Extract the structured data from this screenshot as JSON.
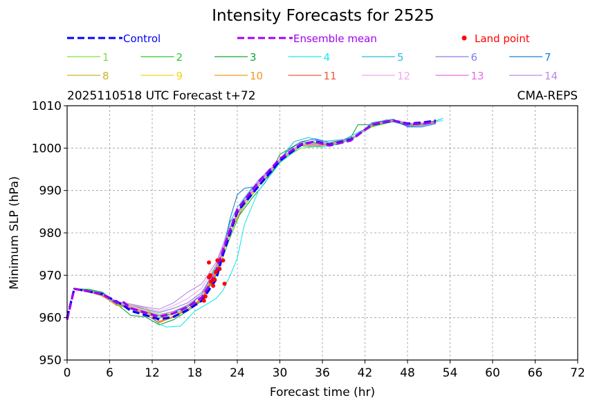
{
  "chart_data": {
    "type": "line",
    "title": "Intensity Forecasts for 2525",
    "subtitle_left": "2025110518 UTC Forecast t+72",
    "subtitle_right": "CMA-REPS",
    "xlabel": "Forecast time (hr)",
    "ylabel": "Minimum SLP (hPa)",
    "xlim": [
      0,
      72
    ],
    "ylim": [
      950,
      1010
    ],
    "xticks": [
      0,
      6,
      12,
      18,
      24,
      30,
      36,
      42,
      48,
      54,
      60,
      66,
      72
    ],
    "yticks": [
      950,
      960,
      970,
      980,
      990,
      1000,
      1010
    ],
    "grid": true,
    "legend": {
      "control": {
        "label": "Control",
        "color": "#0000ff"
      },
      "ensemble_mean": {
        "label": "Ensemble mean",
        "color": "#a000f0"
      },
      "land_point": {
        "label": "Land point",
        "color": "#ff0000"
      },
      "members": [
        {
          "label": "1",
          "color": "#7fe03a"
        },
        {
          "label": "2",
          "color": "#2ec42e"
        },
        {
          "label": "3",
          "color": "#12a63b"
        },
        {
          "label": "4",
          "color": "#19e8e8"
        },
        {
          "label": "5",
          "color": "#22bfe0"
        },
        {
          "label": "6",
          "color": "#7f7fe8"
        },
        {
          "label": "7",
          "color": "#1c7fd0"
        },
        {
          "label": "8",
          "color": "#c9b32a"
        },
        {
          "label": "9",
          "color": "#f2d21a"
        },
        {
          "label": "10",
          "color": "#f5961e"
        },
        {
          "label": "11",
          "color": "#f05a3c"
        },
        {
          "label": "12",
          "color": "#f0a8f0"
        },
        {
          "label": "13",
          "color": "#e86ae8"
        },
        {
          "label": "14",
          "color": "#b98ae8"
        }
      ]
    },
    "series": [
      {
        "name": "Control",
        "x": [
          0,
          1,
          3,
          5,
          7,
          8,
          9,
          11,
          13,
          15,
          17,
          19,
          21,
          22,
          24,
          27,
          30,
          33,
          35,
          37,
          40,
          43,
          46,
          48,
          50,
          52
        ],
        "y": [
          960,
          966.8,
          966.2,
          965.5,
          963.8,
          962.8,
          961.6,
          960.6,
          959.6,
          960.2,
          961.8,
          964,
          969,
          975,
          985,
          991,
          997,
          1000.8,
          1001.6,
          1000.8,
          1002,
          1005.5,
          1006.5,
          1005.8,
          1006,
          1006.5
        ]
      },
      {
        "name": "Ensemble mean",
        "x": [
          0,
          1,
          3,
          5,
          7,
          8,
          9,
          11,
          13,
          15,
          17,
          19,
          20,
          21,
          22,
          24,
          27,
          30,
          33,
          35,
          37,
          40,
          43,
          46,
          48,
          50,
          52
        ],
        "y": [
          959.5,
          966.8,
          966.2,
          965.5,
          963.5,
          963.6,
          962.2,
          961.2,
          960.2,
          961,
          962.5,
          964.8,
          967.5,
          971,
          976,
          985.5,
          992,
          997.5,
          1001,
          1001.5,
          1000.6,
          1001.8,
          1005.6,
          1006.5,
          1005.6,
          1005.8,
          1006.2
        ]
      },
      {
        "name": "1",
        "x": [
          1,
          3,
          5,
          7,
          9,
          11,
          13,
          15,
          17,
          19,
          20,
          22,
          24,
          27,
          30,
          33,
          36,
          40,
          43,
          46,
          49,
          52
        ],
        "y": [
          966.8,
          966.6,
          965.6,
          963.5,
          962.8,
          961.8,
          960.8,
          961.4,
          962.8,
          965.5,
          969,
          976,
          984,
          991,
          997,
          1000,
          1000.5,
          1002.2,
          1005,
          1006.3,
          1005.5,
          1006
        ]
      },
      {
        "name": "2",
        "x": [
          1,
          3,
          5,
          7,
          9,
          11,
          13,
          15,
          17,
          19,
          21,
          23,
          25,
          28,
          31,
          34,
          37,
          40,
          43,
          46,
          49,
          52
        ],
        "y": [
          966.8,
          966,
          965.2,
          963.2,
          962,
          961,
          960.4,
          961,
          962,
          964.5,
          970,
          979,
          987,
          993,
          998.5,
          1001.5,
          1000.8,
          1002,
          1005.2,
          1006.2,
          1005.3,
          1006
        ]
      },
      {
        "name": "3",
        "x": [
          1,
          3,
          5,
          7,
          9,
          11,
          13,
          15,
          17,
          19,
          21,
          22,
          23,
          24,
          26,
          28,
          30,
          33,
          36,
          38,
          40,
          41,
          43,
          46,
          49,
          52
        ],
        "y": [
          966.8,
          966.7,
          966,
          963.2,
          960.5,
          960.2,
          958.3,
          959.5,
          961.6,
          964,
          970,
          976,
          982.8,
          983.5,
          988,
          992,
          998.5,
          1001.5,
          1001,
          1000.8,
          1002.5,
          1005.5,
          1005.5,
          1006.5,
          1005.5,
          1006.5
        ]
      },
      {
        "name": "4",
        "x": [
          1,
          3,
          5,
          7,
          9,
          11,
          13,
          14,
          16,
          18,
          20,
          21,
          22,
          23,
          24,
          25,
          27,
          30,
          33,
          36,
          40,
          43,
          46,
          49,
          53
        ],
        "y": [
          966.8,
          966,
          965.4,
          963,
          962,
          961,
          958.5,
          957.8,
          958,
          961.5,
          963.5,
          964.5,
          966.5,
          970,
          974,
          982,
          990,
          996.5,
          1000.5,
          1000.2,
          1001.8,
          1005.3,
          1006.5,
          1005.5,
          1006.5
        ]
      },
      {
        "name": "5",
        "x": [
          1,
          3,
          5,
          7,
          9,
          11,
          13,
          15,
          17,
          19,
          21,
          23,
          24,
          26,
          28,
          30,
          32,
          34,
          36,
          39,
          42,
          45,
          48,
          50,
          53
        ],
        "y": [
          966.8,
          966.2,
          965.7,
          963.6,
          962.5,
          961.5,
          960,
          961,
          963,
          965.5,
          972,
          982.5,
          986,
          990.5,
          993.5,
          997.3,
          1001.5,
          1002.5,
          1001.6,
          1002,
          1004.5,
          1006.7,
          1005.2,
          1005.3,
          1007
        ]
      },
      {
        "name": "6",
        "x": [
          1,
          3,
          5,
          7,
          9,
          11,
          13,
          15,
          17,
          19,
          21,
          23,
          25,
          27,
          30,
          33,
          35,
          37,
          40,
          43,
          46,
          48,
          50,
          52
        ],
        "y": [
          966.8,
          966.3,
          965.5,
          963.8,
          963,
          962,
          961.2,
          962.2,
          963.5,
          966,
          971.5,
          981,
          988,
          992.5,
          997.2,
          1000.8,
          1001.8,
          1001,
          1002,
          1005.8,
          1006.7,
          1005.2,
          1005.3,
          1006
        ]
      },
      {
        "name": "7",
        "x": [
          1,
          3,
          5,
          7,
          9,
          11,
          13,
          15,
          17,
          19,
          20,
          21,
          22,
          23,
          24,
          25,
          27,
          29,
          31,
          33,
          35,
          37,
          39,
          41,
          43,
          46,
          48,
          50,
          52
        ],
        "y": [
          966.8,
          966.4,
          965.8,
          963.5,
          962,
          961.5,
          960.5,
          961.5,
          962.5,
          965.5,
          968,
          971,
          976,
          983.5,
          989,
          990.5,
          991,
          994.5,
          999.2,
          1001.5,
          1002.2,
          1001.3,
          1002,
          1003,
          1006,
          1006.8,
          1005,
          1005,
          1005.8
        ]
      },
      {
        "name": "8",
        "x": [
          1,
          3,
          5,
          7,
          9,
          11,
          13,
          15,
          17,
          19,
          21,
          23,
          25,
          27,
          30,
          33,
          36,
          40,
          43,
          46,
          49,
          52
        ],
        "y": [
          966.8,
          966.2,
          965,
          963,
          963,
          962.5,
          959,
          960,
          962,
          964.5,
          971,
          980,
          987,
          991,
          997,
          1000.6,
          1000.6,
          1002,
          1005.3,
          1006.4,
          1005.4,
          1006
        ]
      },
      {
        "name": "9",
        "x": [
          1,
          3,
          5,
          7,
          9,
          11,
          13,
          15,
          17,
          19,
          21,
          23,
          25,
          27,
          30,
          33,
          36,
          40,
          43,
          46,
          49,
          52
        ],
        "y": [
          966.8,
          966.1,
          965.3,
          963.5,
          962.5,
          961.3,
          959.8,
          960.8,
          962,
          964.8,
          971.5,
          981,
          986.8,
          991.5,
          997.5,
          1001,
          1000.8,
          1002.2,
          1005.4,
          1006.5,
          1005.6,
          1006.2
        ]
      },
      {
        "name": "10",
        "x": [
          1,
          3,
          5,
          7,
          9,
          11,
          13,
          15,
          17,
          19,
          21,
          23,
          25,
          27,
          30,
          33,
          36,
          40,
          43,
          46,
          49,
          52
        ],
        "y": [
          966.8,
          966.3,
          965.2,
          962.8,
          962.3,
          961.3,
          959.2,
          960.2,
          962,
          964.2,
          970.5,
          981,
          987.5,
          991.5,
          997,
          1000.6,
          1000.5,
          1002,
          1005.4,
          1006.5,
          1005.5,
          1006
        ]
      },
      {
        "name": "11",
        "x": [
          1,
          3,
          5,
          7,
          9,
          11,
          13,
          15,
          17,
          19,
          21,
          23,
          25,
          27,
          30,
          33,
          36,
          40,
          43,
          46,
          49,
          52
        ],
        "y": [
          966.8,
          966.3,
          965.4,
          963.5,
          962.2,
          960.8,
          958.8,
          960.3,
          962,
          964.5,
          970.8,
          981.5,
          987.5,
          991.8,
          997.5,
          1001,
          1000.8,
          1002.1,
          1005.4,
          1006.5,
          1005.5,
          1006.1
        ]
      },
      {
        "name": "12",
        "x": [
          1,
          3,
          5,
          7,
          9,
          11,
          13,
          15,
          17,
          19,
          21,
          23,
          25,
          27,
          30,
          33,
          36,
          40,
          43,
          46,
          49,
          52
        ],
        "y": [
          966.8,
          966.3,
          965.5,
          963.7,
          963,
          962.3,
          961.5,
          962.8,
          964.5,
          967,
          972.5,
          981,
          987.2,
          991.5,
          997.2,
          1000.8,
          1000.7,
          1002,
          1005.5,
          1006.6,
          1005.6,
          1006.2
        ]
      },
      {
        "name": "13",
        "x": [
          1,
          3,
          5,
          7,
          9,
          11,
          13,
          15,
          17,
          19,
          21,
          23,
          25,
          27,
          30,
          33,
          36,
          40,
          43,
          46,
          49,
          52
        ],
        "y": [
          966.8,
          966.2,
          965.3,
          963.4,
          962.5,
          961.5,
          960.5,
          961.5,
          963,
          965.5,
          971.2,
          981.2,
          987.3,
          991.8,
          997.4,
          1001,
          1000.7,
          1002.1,
          1005.5,
          1006.6,
          1005.7,
          1006.3
        ]
      },
      {
        "name": "14",
        "x": [
          1,
          3,
          5,
          7,
          9,
          11,
          13,
          15,
          17,
          19,
          21,
          23,
          25,
          27,
          30,
          33,
          36,
          40,
          43,
          46,
          49,
          52
        ],
        "y": [
          966.8,
          966.4,
          965.6,
          963.8,
          963.2,
          962.5,
          962,
          963.5,
          966,
          968,
          973,
          981.5,
          987.5,
          992,
          997.5,
          1001,
          1000.7,
          1002,
          1005.5,
          1006.5,
          1005.6,
          1006.2
        ]
      }
    ],
    "land_points": {
      "x": [
        19.3,
        19.5,
        20.0,
        20.0,
        20.2,
        20.3,
        20.6,
        20.8,
        21.0,
        21.2,
        21.5,
        22.0,
        22.2
      ],
      "y": [
        964.0,
        965.0,
        973.0,
        969.5,
        970.0,
        968.5,
        967.5,
        969.0,
        970.8,
        973.5,
        971.5,
        973.5,
        968.0
      ]
    }
  }
}
